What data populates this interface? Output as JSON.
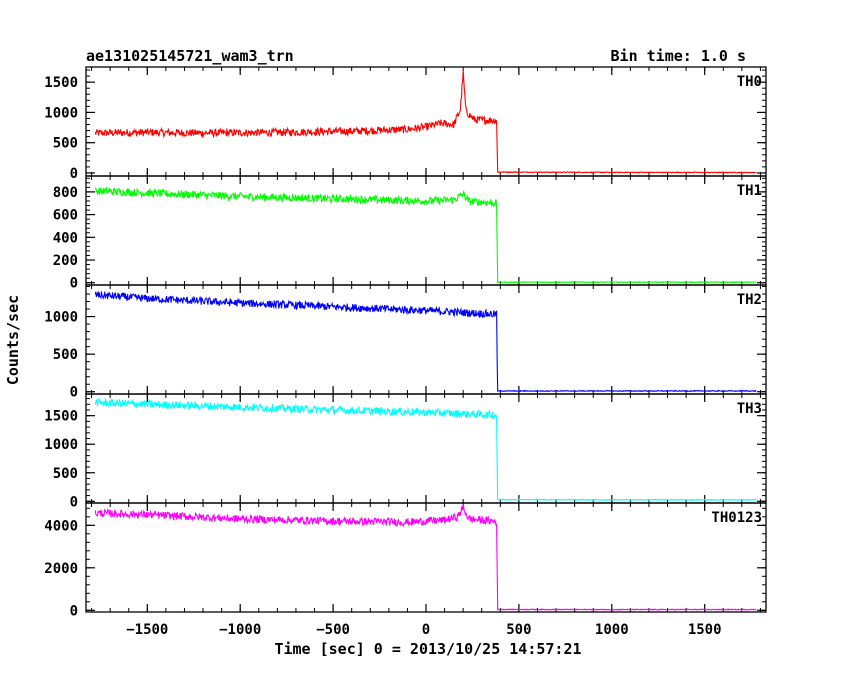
{
  "header": {
    "title": "ae131025145721_wam3_trn",
    "bin_time": "Bin time: 1.0 s"
  },
  "chart_data": {
    "type": "line",
    "xlabel": "Time [sec] 0 = 2013/10/25 14:57:21",
    "ylabel": "Counts/sec",
    "xlim": [
      -1830,
      1830
    ],
    "x_ticks": [
      -1500,
      -1000,
      -500,
      0,
      500,
      1000,
      1500
    ],
    "grid": false,
    "panels": [
      {
        "name": "TH0",
        "color": "#ff0000",
        "ylim": [
          -50,
          1750
        ],
        "y_ticks": [
          0,
          500,
          1000,
          1500
        ],
        "points": [
          [
            -1780,
            660
          ],
          [
            -1500,
            670
          ],
          [
            -1200,
            660
          ],
          [
            -800,
            670
          ],
          [
            -400,
            690
          ],
          [
            -100,
            720
          ],
          [
            0,
            760
          ],
          [
            80,
            820
          ],
          [
            150,
            800
          ],
          [
            185,
            1050
          ],
          [
            200,
            1650
          ],
          [
            215,
            1020
          ],
          [
            260,
            880
          ],
          [
            320,
            870
          ],
          [
            380,
            870
          ],
          [
            385,
            15
          ],
          [
            1000,
            10
          ],
          [
            1780,
            8
          ]
        ]
      },
      {
        "name": "TH1",
        "color": "#00ff00",
        "ylim": [
          -20,
          940
        ],
        "y_ticks": [
          0,
          200,
          400,
          600,
          800
        ],
        "points": [
          [
            -1780,
            810
          ],
          [
            -1500,
            790
          ],
          [
            -1000,
            760
          ],
          [
            -500,
            740
          ],
          [
            0,
            720
          ],
          [
            150,
            730
          ],
          [
            200,
            780
          ],
          [
            230,
            720
          ],
          [
            380,
            700
          ],
          [
            385,
            5
          ],
          [
            1000,
            5
          ],
          [
            1780,
            5
          ]
        ]
      },
      {
        "name": "TH2",
        "color": "#0000ff",
        "ylim": [
          -30,
          1420
        ],
        "y_ticks": [
          0,
          500,
          1000
        ],
        "points": [
          [
            -1780,
            1290
          ],
          [
            -1500,
            1240
          ],
          [
            -1000,
            1180
          ],
          [
            -500,
            1130
          ],
          [
            0,
            1080
          ],
          [
            380,
            1030
          ],
          [
            385,
            10
          ],
          [
            1000,
            10
          ],
          [
            1780,
            10
          ]
        ]
      },
      {
        "name": "TH3",
        "color": "#00ffff",
        "ylim": [
          -30,
          1880
        ],
        "y_ticks": [
          0,
          500,
          1000,
          1500
        ],
        "points": [
          [
            -1780,
            1730
          ],
          [
            -1500,
            1700
          ],
          [
            -1000,
            1650
          ],
          [
            -500,
            1600
          ],
          [
            0,
            1560
          ],
          [
            380,
            1510
          ],
          [
            385,
            30
          ],
          [
            1000,
            25
          ],
          [
            1780,
            25
          ]
        ]
      },
      {
        "name": "TH0123",
        "color": "#ff00ff",
        "ylim": [
          -80,
          5050
        ],
        "y_ticks": [
          0,
          2000,
          4000
        ],
        "points": [
          [
            -1780,
            4580
          ],
          [
            -1500,
            4500
          ],
          [
            -1000,
            4300
          ],
          [
            -500,
            4200
          ],
          [
            -100,
            4150
          ],
          [
            100,
            4250
          ],
          [
            170,
            4400
          ],
          [
            200,
            4820
          ],
          [
            230,
            4300
          ],
          [
            380,
            4180
          ],
          [
            385,
            40
          ],
          [
            1000,
            35
          ],
          [
            1780,
            35
          ]
        ]
      }
    ]
  }
}
